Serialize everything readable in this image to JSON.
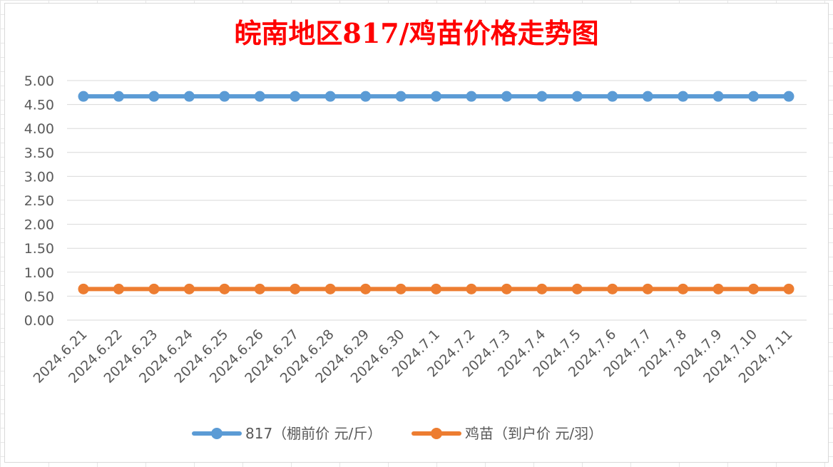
{
  "chart_data": {
    "type": "line",
    "title": "皖南地区817/鸡苗价格走势图",
    "categories": [
      "2024.6.21",
      "2024.6.22",
      "2024.6.23",
      "2024.6.24",
      "2024.6.25",
      "2024.6.26",
      "2024.6.27",
      "2024.6.28",
      "2024.6.29",
      "2024.6.30",
      "2024.7.1",
      "2024.7.2",
      "2024.7.3",
      "2024.7.4",
      "2024.7.5",
      "2024.7.6",
      "2024.7.7",
      "2024.7.8",
      "2024.7.9",
      "2024.7.10",
      "2024.7.11"
    ],
    "series": [
      {
        "name": "817（棚前价 元/斤）",
        "color": "#5b9bd5",
        "values": [
          4.67,
          4.67,
          4.67,
          4.67,
          4.67,
          4.67,
          4.67,
          4.67,
          4.67,
          4.67,
          4.67,
          4.67,
          4.67,
          4.67,
          4.67,
          4.67,
          4.67,
          4.67,
          4.67,
          4.67,
          4.67
        ]
      },
      {
        "name": "鸡苗（到户价 元/羽）",
        "color": "#ed7d31",
        "values": [
          0.65,
          0.65,
          0.65,
          0.65,
          0.65,
          0.65,
          0.65,
          0.65,
          0.65,
          0.65,
          0.65,
          0.65,
          0.65,
          0.65,
          0.65,
          0.65,
          0.65,
          0.65,
          0.65,
          0.65,
          0.65
        ]
      }
    ],
    "y_ticks": [
      "0.00",
      "0.50",
      "1.00",
      "1.50",
      "2.00",
      "2.50",
      "3.00",
      "3.50",
      "4.00",
      "4.50",
      "5.00"
    ],
    "ylim": [
      0,
      5
    ],
    "grid": true,
    "legend": "bottom"
  }
}
